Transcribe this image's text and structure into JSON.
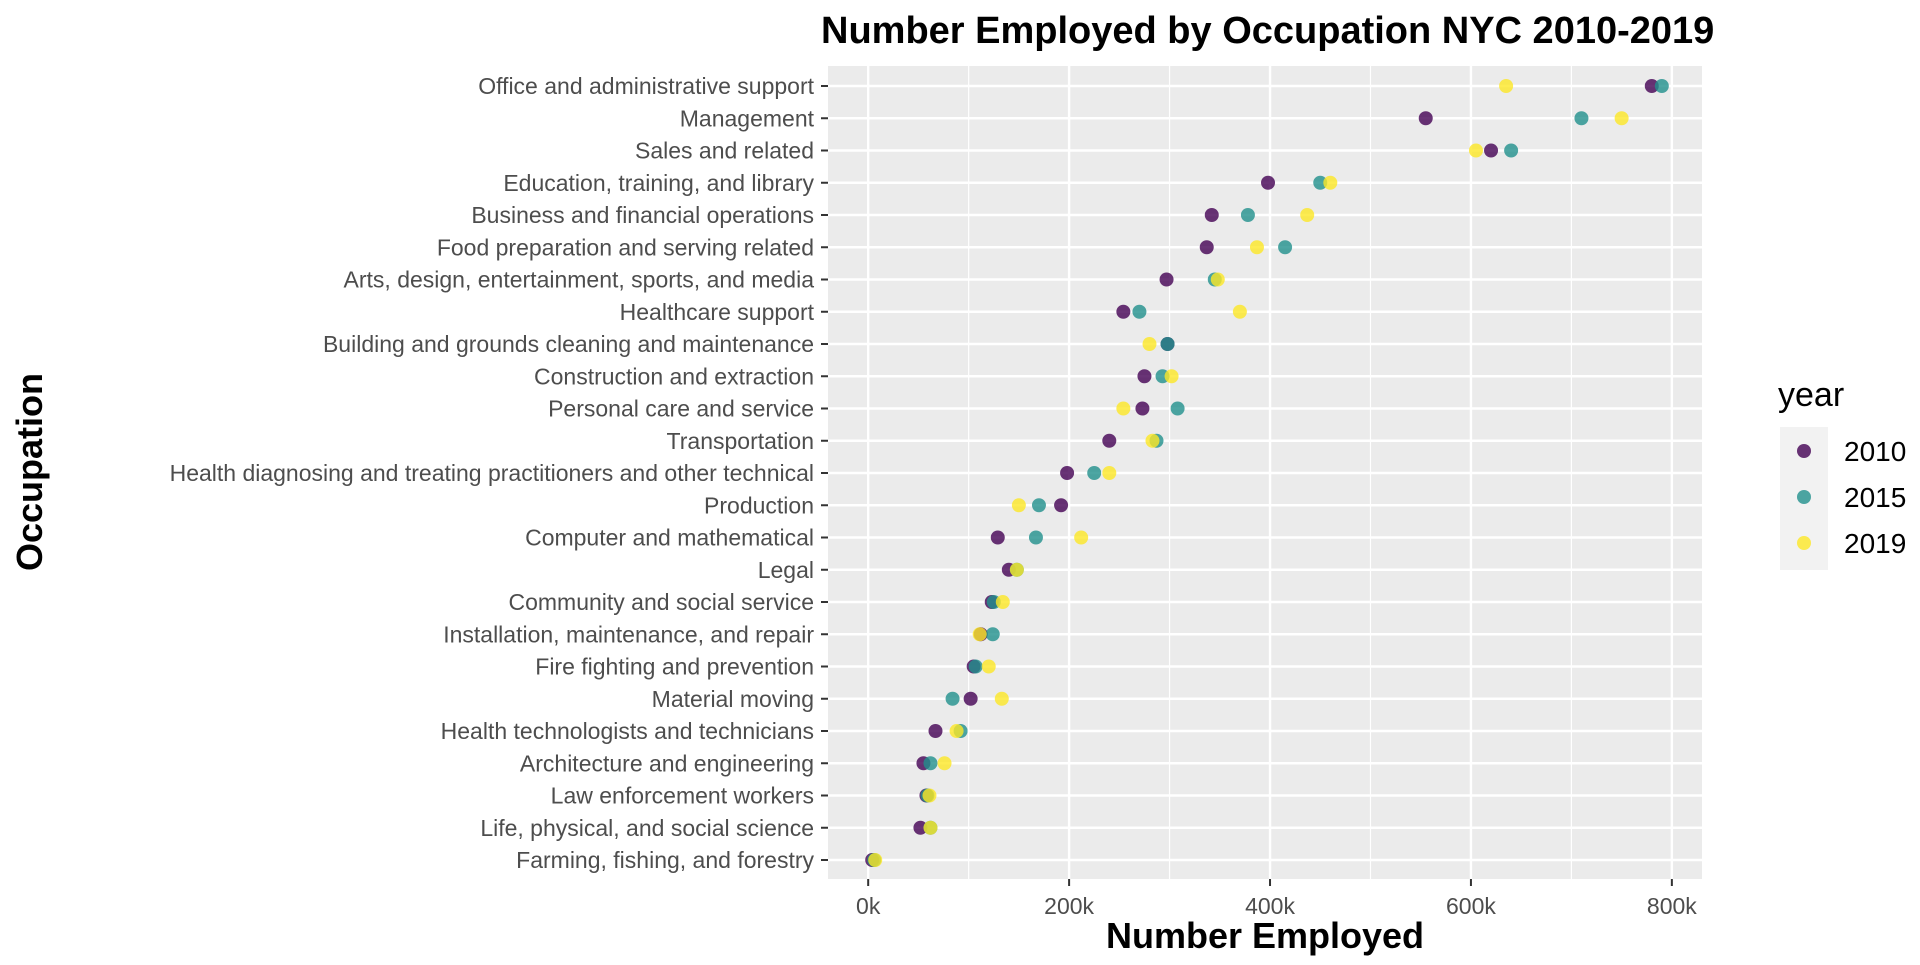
{
  "chart_data": {
    "type": "scatter",
    "title": "Number Employed by Occupation NYC 2010-2019",
    "xlabel": "Number Employed",
    "ylabel": "Occupation",
    "xlim": [
      -40000,
      830000
    ],
    "x_ticks": [
      0,
      200000,
      400000,
      600000,
      800000
    ],
    "x_tick_labels": [
      "0k",
      "200k",
      "400k",
      "600k",
      "800k"
    ],
    "grid": true,
    "legend": {
      "title": "year",
      "position": "right"
    },
    "categories": [
      "Office and administrative support",
      "Management",
      "Sales and related",
      "Education, training, and library",
      "Business and financial operations",
      "Food preparation and serving related",
      "Arts, design, entertainment, sports, and media",
      "Healthcare support",
      "Building and grounds cleaning and maintenance",
      "Construction and extraction",
      "Personal care and service",
      "Transportation",
      "Health diagnosing and treating practitioners and other technical",
      "Production",
      "Computer and mathematical",
      "Legal",
      "Community and social service",
      "Installation, maintenance, and repair",
      "Fire fighting and prevention",
      "Material moving",
      "Health technologists and technicians",
      "Architecture and engineering",
      "Law enforcement workers",
      "Life, physical, and social science",
      "Farming, fishing, and forestry"
    ],
    "series": [
      {
        "name": "2010",
        "color": "#440154",
        "values": [
          780000,
          555000,
          620000,
          398000,
          342000,
          337000,
          297000,
          254000,
          298000,
          275000,
          273000,
          240000,
          198000,
          192000,
          129000,
          140000,
          123000,
          112000,
          105000,
          102000,
          67000,
          55000,
          58000,
          52000,
          4000
        ]
      },
      {
        "name": "2015",
        "color": "#21908C",
        "values": [
          790000,
          710000,
          640000,
          450000,
          378000,
          415000,
          345000,
          270000,
          298000,
          293000,
          308000,
          287000,
          225000,
          170000,
          167000,
          148000,
          125000,
          124000,
          107000,
          84000,
          92000,
          62000,
          59000,
          62000,
          6000
        ]
      },
      {
        "name": "2019",
        "color": "#FDE725",
        "values": [
          635000,
          750000,
          605000,
          460000,
          437000,
          387000,
          348000,
          370000,
          280000,
          302000,
          254000,
          283000,
          240000,
          150000,
          212000,
          148000,
          134000,
          111000,
          120000,
          133000,
          88000,
          76000,
          61000,
          62000,
          7000
        ]
      }
    ]
  }
}
